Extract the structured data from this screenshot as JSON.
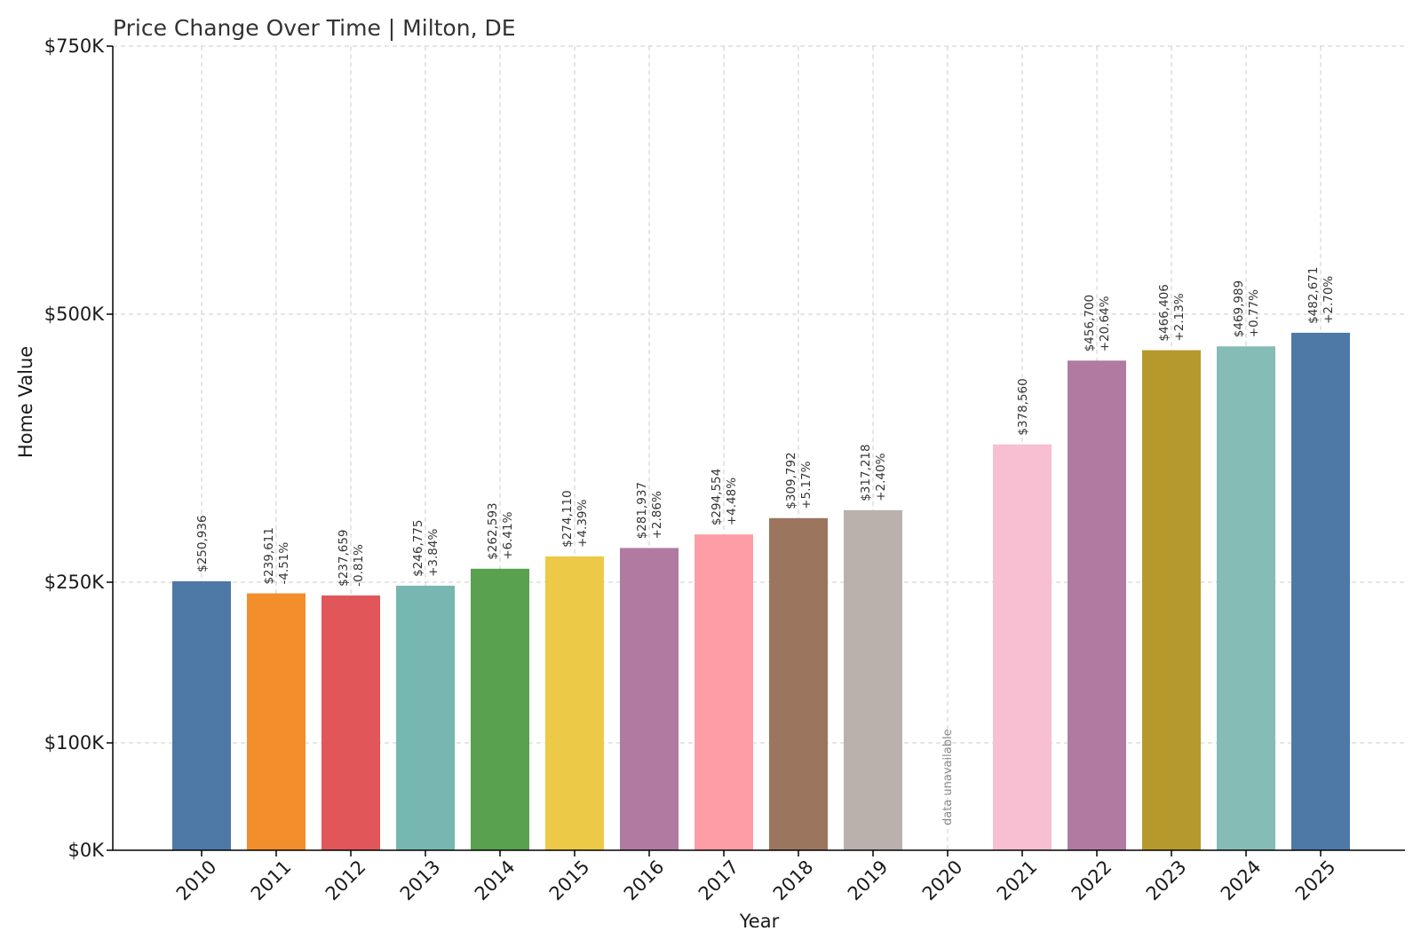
{
  "chart_data": {
    "type": "bar",
    "title": "Price Change Over Time | Milton, DE",
    "xlabel": "Year",
    "ylabel": "Home Value",
    "y_scale": "piecewise-linear",
    "y_ticks": [
      {
        "value": 0,
        "label": "$0K"
      },
      {
        "value": 100000,
        "label": "$100K"
      },
      {
        "value": 250000,
        "label": "$250K"
      },
      {
        "value": 500000,
        "label": "$500K"
      },
      {
        "value": 750000,
        "label": "$750K"
      }
    ],
    "ylim": [
      0,
      750000
    ],
    "grid": true,
    "missing_label": "data unavailable",
    "categories": [
      "2010",
      "2011",
      "2012",
      "2013",
      "2014",
      "2015",
      "2016",
      "2017",
      "2018",
      "2019",
      "2020",
      "2021",
      "2022",
      "2023",
      "2024",
      "2025"
    ],
    "values": [
      250936,
      239611,
      237659,
      246775,
      262593,
      274110,
      281937,
      294554,
      309792,
      317218,
      null,
      378560,
      456700,
      466406,
      469989,
      482671
    ],
    "value_labels": [
      "$250,936",
      "$239,611",
      "$237,659",
      "$246,775",
      "$262,593",
      "$274,110",
      "$281,937",
      "$294,554",
      "$309,792",
      "$317,218",
      "",
      "$378,560",
      "$456,700",
      "$466,406",
      "$469,989",
      "$482,671"
    ],
    "change_labels": [
      "",
      "-4.51%",
      "-0.81%",
      "+3.84%",
      "+6.41%",
      "+4.39%",
      "+2.86%",
      "+4.48%",
      "+5.17%",
      "+2.40%",
      "",
      "",
      "+20.64%",
      "+2.13%",
      "+0.77%",
      "+2.70%"
    ],
    "colors": [
      "#4e79a7",
      "#f28e2b",
      "#e15759",
      "#76b7b2",
      "#59a14f",
      "#edc948",
      "#b07aa1",
      "#ff9da7",
      "#9c755f",
      "#bab0ac",
      "#cccccc",
      "#f8bfd2",
      "#b07aa1",
      "#b5992d",
      "#86bcb6",
      "#4e79a7"
    ]
  }
}
